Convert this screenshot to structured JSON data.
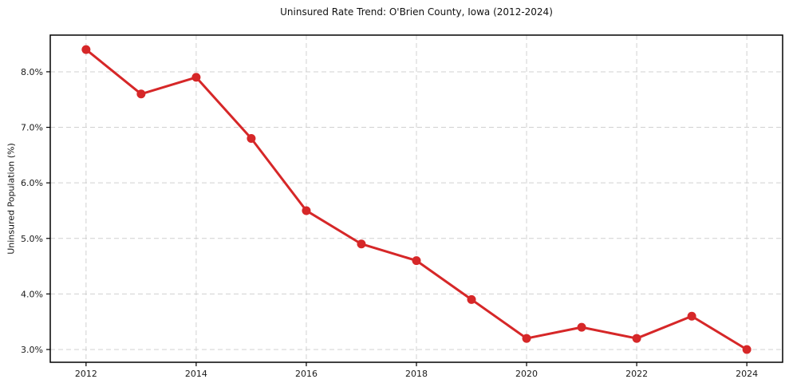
{
  "figure": {
    "background": "#ffffff"
  },
  "chart_data": {
    "type": "line",
    "title": "Uninsured Rate Trend: O'Brien County, Iowa (2012-2024)",
    "xlabel": "",
    "ylabel": "Uninsured Population (%)",
    "x": [
      2012,
      2013,
      2014,
      2015,
      2016,
      2017,
      2018,
      2019,
      2020,
      2021,
      2022,
      2023,
      2024
    ],
    "values": [
      8.4,
      7.6,
      7.9,
      6.8,
      5.5,
      4.9,
      4.6,
      3.9,
      3.2,
      3.4,
      3.2,
      3.6,
      3.0
    ],
    "xticks": {
      "values": [
        2012,
        2014,
        2016,
        2018,
        2020,
        2022,
        2024
      ],
      "labels": [
        "2012",
        "2014",
        "2016",
        "2018",
        "2020",
        "2022",
        "2024"
      ]
    },
    "yticks": {
      "values": [
        3.0,
        4.0,
        5.0,
        6.0,
        7.0,
        8.0
      ],
      "labels": [
        "3.0%",
        "4.0%",
        "5.0%",
        "6.0%",
        "7.0%",
        "8.0%"
      ]
    },
    "xlim": [
      2011.35,
      2024.65
    ],
    "ylim": [
      2.77,
      8.66
    ],
    "grid": true,
    "legend": false,
    "line_color": "#d62728",
    "marker": "circle",
    "grid_color": "#d0d0d0",
    "spine_color": "#000000"
  }
}
